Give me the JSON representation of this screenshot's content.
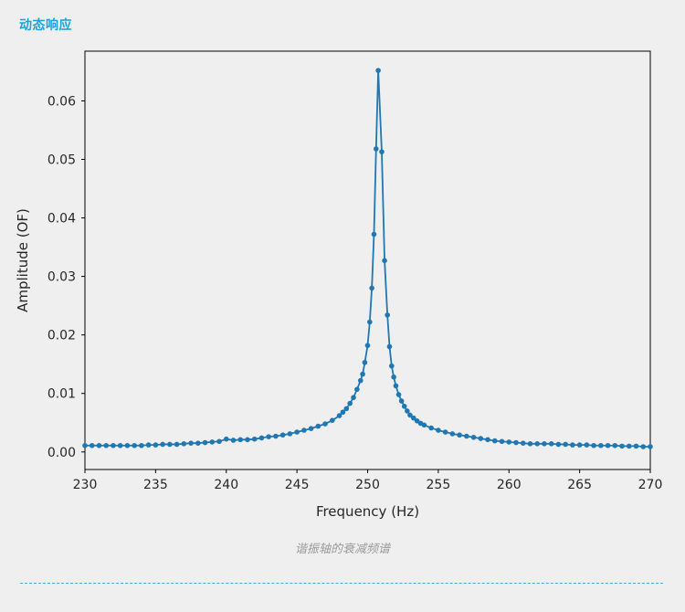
{
  "section": {
    "title": "动态响应"
  },
  "caption": "谐振轴的衰减频谱",
  "colors": {
    "accent": "#1aa3dd",
    "series": "#1f77b4"
  },
  "chart_data": {
    "type": "line",
    "xlabel": "Frequency (Hz)",
    "ylabel": "Amplitude (OF)",
    "xlim": [
      230,
      270
    ],
    "ylim": [
      -0.003,
      0.0685
    ],
    "xticks": [
      230,
      235,
      240,
      245,
      250,
      255,
      260,
      265,
      270
    ],
    "yticks": [
      0.0,
      0.01,
      0.02,
      0.03,
      0.04,
      0.05,
      0.06
    ],
    "ytick_labels": [
      "0.00",
      "0.01",
      "0.02",
      "0.03",
      "0.04",
      "0.05",
      "0.06"
    ],
    "grid": false,
    "series": [
      {
        "marker": "dot",
        "x": [
          230.0,
          230.5,
          231.0,
          231.5,
          232.0,
          232.5,
          233.0,
          233.5,
          234.0,
          234.5,
          235.0,
          235.5,
          236.0,
          236.5,
          237.0,
          237.5,
          238.0,
          238.5,
          239.0,
          239.5,
          240.0,
          240.5,
          241.0,
          241.5,
          242.0,
          242.5,
          243.0,
          243.5,
          244.0,
          244.5,
          245.0,
          245.5,
          246.0,
          246.5,
          247.0,
          247.5,
          248.0,
          248.25,
          248.5,
          248.75,
          249.0,
          249.25,
          249.5,
          249.65,
          249.8,
          250.0,
          250.15,
          250.3,
          250.45,
          250.6,
          250.75,
          251.0,
          251.2,
          251.4,
          251.55,
          251.7,
          251.85,
          252.0,
          252.2,
          252.4,
          252.6,
          252.8,
          253.0,
          253.25,
          253.5,
          253.75,
          254.0,
          254.5,
          255.0,
          255.5,
          256.0,
          256.5,
          257.0,
          257.5,
          258.0,
          258.5,
          259.0,
          259.5,
          260.0,
          260.5,
          261.0,
          261.5,
          262.0,
          262.5,
          263.0,
          263.5,
          264.0,
          264.5,
          265.0,
          265.5,
          266.0,
          266.5,
          267.0,
          267.5,
          268.0,
          268.5,
          269.0,
          269.5,
          270.0
        ],
        "values": [
          0.0011,
          0.0011,
          0.0011,
          0.0011,
          0.0011,
          0.0011,
          0.0011,
          0.0011,
          0.0011,
          0.0012,
          0.0012,
          0.0013,
          0.0013,
          0.0013,
          0.0014,
          0.0015,
          0.0015,
          0.0016,
          0.0017,
          0.0018,
          0.0022,
          0.002,
          0.0021,
          0.0021,
          0.0022,
          0.0024,
          0.0026,
          0.0027,
          0.0029,
          0.0031,
          0.0034,
          0.0037,
          0.004,
          0.0044,
          0.0048,
          0.0054,
          0.0062,
          0.0068,
          0.0074,
          0.0083,
          0.0093,
          0.0107,
          0.0122,
          0.0133,
          0.0153,
          0.0182,
          0.0222,
          0.028,
          0.0372,
          0.0518,
          0.0652,
          0.0513,
          0.0327,
          0.0234,
          0.018,
          0.0147,
          0.0128,
          0.0113,
          0.0098,
          0.0087,
          0.0078,
          0.007,
          0.0063,
          0.0058,
          0.0053,
          0.0049,
          0.0046,
          0.0041,
          0.0037,
          0.0034,
          0.0031,
          0.0029,
          0.0027,
          0.0025,
          0.0023,
          0.0021,
          0.0019,
          0.0018,
          0.0017,
          0.0016,
          0.0015,
          0.0014,
          0.0014,
          0.0014,
          0.0014,
          0.0013,
          0.0013,
          0.0012,
          0.0012,
          0.0012,
          0.0011,
          0.0011,
          0.0011,
          0.0011,
          0.001,
          0.001,
          0.001,
          0.0009,
          0.0009
        ]
      }
    ]
  }
}
